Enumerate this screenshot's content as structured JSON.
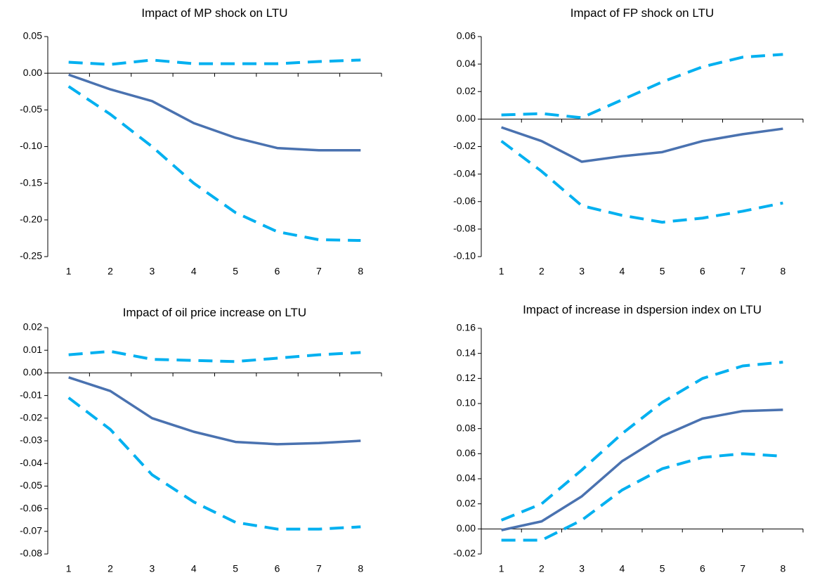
{
  "chart_data": [
    {
      "type": "line",
      "title": "Impact of MP shock on LTU",
      "categories": [
        "1",
        "2",
        "3",
        "4",
        "5",
        "6",
        "7",
        "8"
      ],
      "ylim": [
        -0.25,
        0.05
      ],
      "yticks": [
        0.05,
        {
          "value": 0,
          "label": "0.00"
        },
        -0.05,
        {
          "value": -0.1,
          "label": "-0.10"
        },
        -0.15,
        {
          "value": -0.2,
          "label": "-0.20"
        },
        -0.25
      ],
      "series": [
        {
          "color": "#4a72b0",
          "dash": false,
          "values": [
            -0.002,
            -0.022,
            -0.038,
            -0.068,
            -0.088,
            -0.102,
            -0.105,
            -0.105
          ]
        },
        {
          "color": "#00b0f0",
          "dash": true,
          "values": [
            0.015,
            0.012,
            0.018,
            0.013,
            0.013,
            0.013,
            0.016,
            0.018
          ]
        },
        {
          "color": "#00b0f0",
          "dash": true,
          "values": [
            -0.018,
            -0.056,
            -0.1,
            -0.15,
            -0.19,
            -0.216,
            -0.227,
            -0.228
          ]
        }
      ]
    },
    {
      "type": "line",
      "title": "Impact of FP shock on LTU",
      "categories": [
        "1",
        "2",
        "3",
        "4",
        "5",
        "6",
        "7",
        "8"
      ],
      "ylim": [
        -0.1,
        0.06
      ],
      "yticks": [
        0.06,
        0.04,
        0.02,
        {
          "value": 0,
          "label": "0.00"
        },
        -0.02,
        -0.04,
        -0.06,
        -0.08,
        {
          "value": -0.1,
          "label": "-0.10"
        }
      ],
      "series": [
        {
          "color": "#4a72b0",
          "dash": false,
          "values": [
            -0.006,
            -0.016,
            -0.031,
            -0.027,
            -0.024,
            -0.016,
            -0.011,
            -0.007
          ]
        },
        {
          "color": "#00b0f0",
          "dash": true,
          "values": [
            0.003,
            0.004,
            0.001,
            0.014,
            0.027,
            0.038,
            0.045,
            0.047
          ]
        },
        {
          "color": "#00b0f0",
          "dash": true,
          "values": [
            -0.016,
            -0.038,
            -0.063,
            -0.07,
            -0.075,
            -0.072,
            -0.067,
            -0.061
          ]
        }
      ]
    },
    {
      "type": "line",
      "title": "Impact of oil price increase on LTU",
      "categories": [
        "1",
        "2",
        "3",
        "4",
        "5",
        "6",
        "7",
        "8"
      ],
      "ylim": [
        -0.08,
        0.02
      ],
      "yticks": [
        0.02,
        0.01,
        {
          "value": 0,
          "label": "0.00"
        },
        -0.01,
        -0.02,
        -0.03,
        -0.04,
        -0.05,
        -0.06,
        -0.07,
        -0.08
      ],
      "series": [
        {
          "color": "#4a72b0",
          "dash": false,
          "values": [
            -0.002,
            -0.008,
            -0.02,
            -0.026,
            -0.0305,
            -0.0315,
            -0.031,
            -0.03
          ]
        },
        {
          "color": "#00b0f0",
          "dash": true,
          "values": [
            0.008,
            0.0095,
            0.006,
            0.0055,
            0.005,
            0.0065,
            0.008,
            0.009
          ]
        },
        {
          "color": "#00b0f0",
          "dash": true,
          "values": [
            -0.011,
            -0.025,
            -0.045,
            -0.057,
            -0.066,
            -0.069,
            -0.069,
            -0.068
          ]
        }
      ]
    },
    {
      "type": "line",
      "title": "Impact of increase in dspersion index on LTU",
      "categories": [
        "1",
        "2",
        "3",
        "4",
        "5",
        "6",
        "7",
        "8"
      ],
      "ylim": [
        -0.02,
        0.16
      ],
      "yticks": [
        0.16,
        0.14,
        0.12,
        {
          "value": 0.1,
          "label": "0.10"
        },
        0.08,
        0.06,
        0.04,
        0.02,
        {
          "value": 0,
          "label": "0.00"
        },
        -0.02
      ],
      "series": [
        {
          "color": "#4a72b0",
          "dash": false,
          "values": [
            -0.001,
            0.006,
            0.026,
            0.054,
            0.074,
            0.088,
            0.094,
            0.095
          ]
        },
        {
          "color": "#00b0f0",
          "dash": true,
          "values": [
            0.007,
            0.02,
            0.047,
            0.076,
            0.101,
            0.12,
            0.13,
            0.133
          ]
        },
        {
          "color": "#00b0f0",
          "dash": true,
          "values": [
            -0.009,
            -0.009,
            0.007,
            0.031,
            0.048,
            0.057,
            0.06,
            0.058
          ]
        }
      ]
    }
  ]
}
